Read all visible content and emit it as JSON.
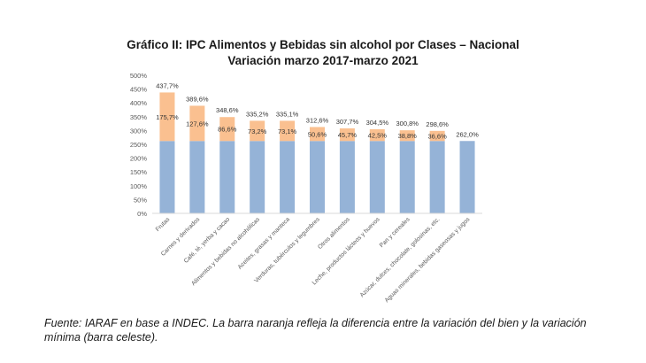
{
  "chart_data": {
    "type": "bar",
    "stacked": true,
    "title": "Gráfico II: IPC Alimentos y Bebidas sin alcohol por Clases – Nacional",
    "subtitle": "Variación marzo 2017-marzo 2021",
    "categories": [
      "Frutas",
      "Carnes y derivados",
      "Café, té, yerba y cacao",
      "Alimentos y bebidas no alcohólicas",
      "Aceites, grasas y manteca",
      "Verduras, tubérculos y legumbres",
      "Otros alimentos",
      "Leche, productos lácteos y huevos",
      "Pan y cereales",
      "Azúcar, dulces, chocolate, golosinas, etc.",
      "Aguas minerales, bebidas gaseosas y jugos"
    ],
    "series": [
      {
        "values": [
          262.0,
          262.0,
          262.0,
          262.0,
          262.0,
          262.0,
          262.0,
          262.0,
          262.0,
          262.0,
          262.0
        ],
        "color": "#95b3d7"
      },
      {
        "values": [
          175.7,
          127.6,
          86.6,
          73.2,
          73.1,
          50.6,
          45.7,
          42.5,
          38.8,
          36.6,
          0
        ],
        "labels": [
          "175,7%",
          "127,6%",
          "86,6%",
          "73,2%",
          "73,1%",
          "50,6%",
          "45,7%",
          "42,5%",
          "38,8%",
          "36,6%",
          ""
        ],
        "color": "#fac090"
      }
    ],
    "totals": [
      437.7,
      389.6,
      348.6,
      335.2,
      335.1,
      312.6,
      307.7,
      304.5,
      300.8,
      298.6,
      262.0
    ],
    "total_labels": [
      "437,7%",
      "389,6%",
      "348,6%",
      "335,2%",
      "335,1%",
      "312,6%",
      "307,7%",
      "304,5%",
      "300,8%",
      "298,6%",
      "262,0%"
    ],
    "ylim": [
      0,
      500
    ],
    "yticks": [
      0,
      50,
      100,
      150,
      200,
      250,
      300,
      350,
      400,
      450,
      500
    ],
    "ytick_labels": [
      "0%",
      "50%",
      "100%",
      "150%",
      "200%",
      "250%",
      "300%",
      "350%",
      "400%",
      "450%",
      "500%"
    ],
    "xlabel": "",
    "ylabel": "",
    "grid": false,
    "legend": "none"
  },
  "source_note": "Fuente: IARAF en base a INDEC. La barra naranja refleja la diferencia entre la variación del bien y la variación mínima (barra celeste)."
}
